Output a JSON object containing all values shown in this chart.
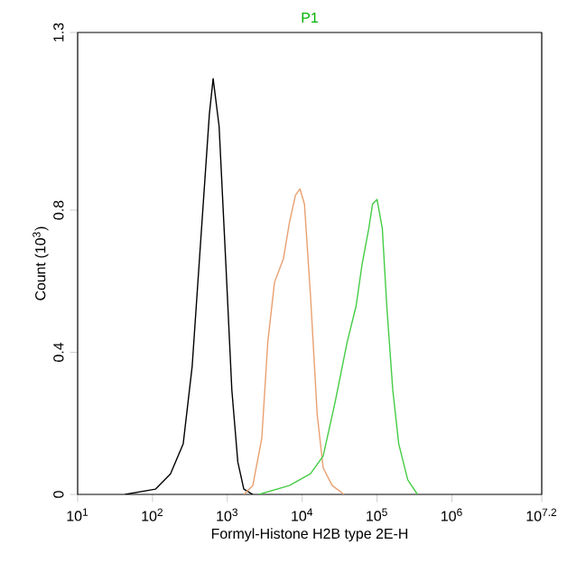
{
  "chart_data": {
    "type": "line",
    "title": "P1",
    "xlabel": "Formyl-Histone H2B type 2E-H",
    "ylabel": "Count (10$^{3}$)",
    "log": "x",
    "xlim": [
      10,
      15848932
    ],
    "ylim": [
      0,
      1.3
    ],
    "xticks": [
      {
        "value": 10,
        "label": "10$^{1}$"
      },
      {
        "value": 100,
        "label": "10$^{2}$"
      },
      {
        "value": 1000,
        "label": "10$^{3}$"
      },
      {
        "value": 10000,
        "label": "10$^{4}$"
      },
      {
        "value": 100000,
        "label": "10$^{5}$"
      },
      {
        "value": 1000000,
        "label": "10$^{6}$"
      },
      {
        "value": 15848932,
        "label": "10$^{7.2}$"
      }
    ],
    "yticks": [
      0,
      0.4,
      0.8,
      1.3
    ],
    "series": [
      {
        "color": "#000000",
        "x": [
          43,
          110,
          174,
          257,
          339,
          447,
          575,
          646,
          776,
          955,
          1148,
          1380,
          1660,
          2188
        ],
        "values": [
          0,
          0.015,
          0.058,
          0.142,
          0.361,
          0.733,
          1.07,
          1.17,
          1.036,
          0.648,
          0.294,
          0.091,
          0.015,
          0
        ]
      },
      {
        "color": "#e8a070",
        "x": [
          1660,
          2188,
          2884,
          3467,
          4266,
          5623,
          6761,
          8128,
          9333,
          10715,
          12882,
          15849,
          19055,
          25119,
          36308
        ],
        "values": [
          0,
          0.025,
          0.158,
          0.428,
          0.597,
          0.664,
          0.766,
          0.842,
          0.86,
          0.817,
          0.563,
          0.226,
          0.075,
          0.025,
          0
        ]
      },
      {
        "color": "#44cc44",
        "x": [
          2630,
          6761,
          12882,
          19055,
          27542,
          39811,
          52481,
          63096,
          77625,
          87096,
          100000,
          117490,
          134896,
          162181,
          194984,
          257040,
          346737
        ],
        "values": [
          0,
          0.025,
          0.058,
          0.108,
          0.26,
          0.428,
          0.53,
          0.648,
          0.749,
          0.817,
          0.83,
          0.749,
          0.53,
          0.294,
          0.142,
          0.041,
          0
        ]
      }
    ]
  }
}
